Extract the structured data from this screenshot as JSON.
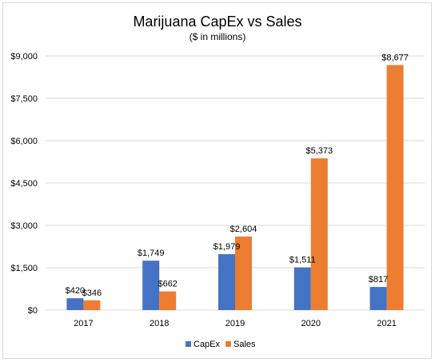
{
  "chart_data": {
    "type": "bar",
    "title": "Marijuana CapEx vs Sales",
    "subtitle": "($ in millions)",
    "categories": [
      "2017",
      "2018",
      "2019",
      "2020",
      "2021"
    ],
    "series": [
      {
        "name": "CapEx",
        "values": [
          420,
          1749,
          1979,
          1511,
          817
        ],
        "labels": [
          "$420",
          "$1,749",
          "$1,979",
          "$1,511",
          "$817"
        ],
        "color": "#4472c4"
      },
      {
        "name": "Sales",
        "values": [
          346,
          662,
          2604,
          5373,
          8677
        ],
        "labels": [
          "$346",
          "$662",
          "$2,604",
          "$5,373",
          "$8,677"
        ],
        "color": "#ed7d31"
      }
    ],
    "yticks": [
      0,
      1500,
      3000,
      4500,
      6000,
      7500,
      9000
    ],
    "ytick_labels": [
      "$0",
      "$1,500",
      "$3,000",
      "$4,500",
      "$6,000",
      "$7,500",
      "$9,000"
    ],
    "ylim": [
      0,
      9000
    ],
    "grid": true,
    "legend_position": "bottom",
    "gridline_color": "#d9d9d9"
  }
}
